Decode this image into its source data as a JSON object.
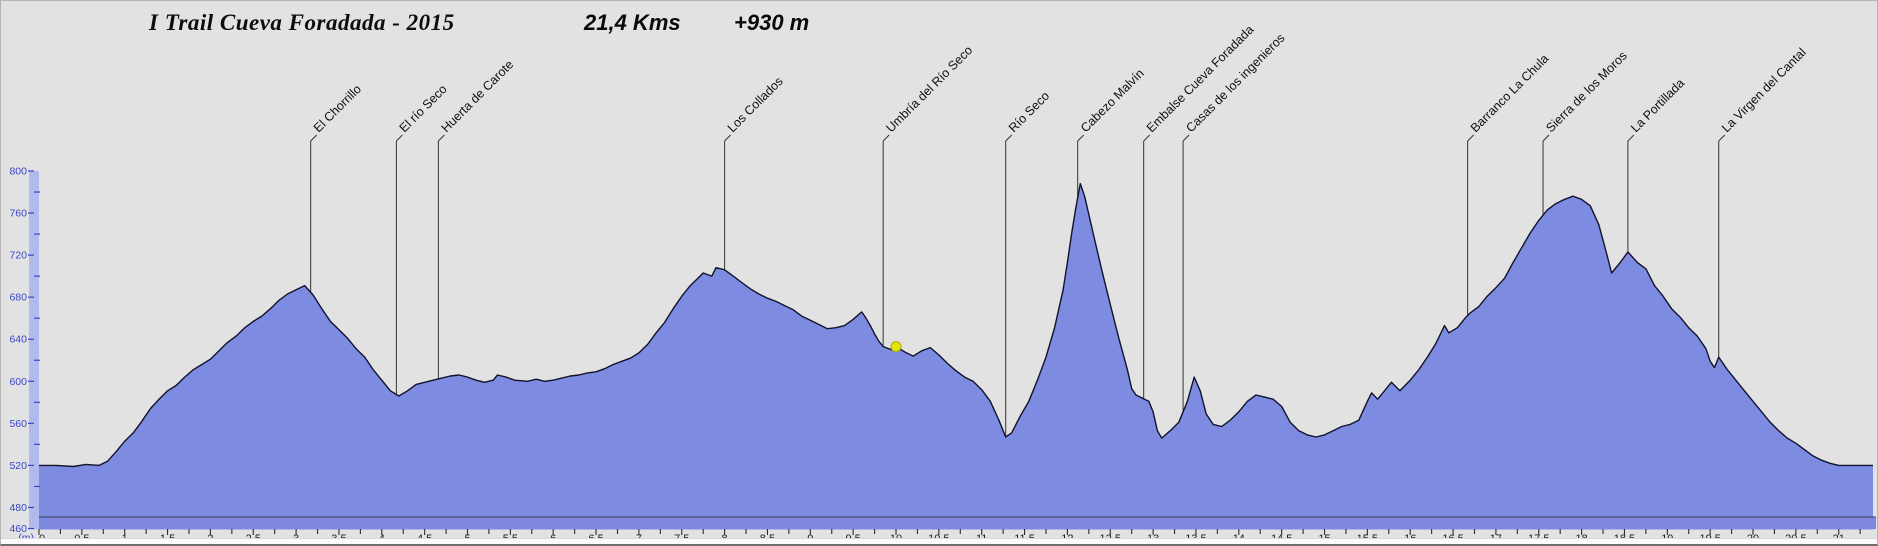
{
  "header": {
    "title": "I Trail Cueva Foradada - 2015",
    "distance": "21,4 Kms",
    "gain": "+930 m"
  },
  "chart_data": {
    "type": "area",
    "title": "I Trail Cueva Foradada - 2015",
    "distance_label": "21,4 Kms",
    "elevation_gain_label": "+930 m",
    "xlabel": "km",
    "ylabel": "(m)",
    "y_unit_label": "(m)",
    "xlim": [
      0,
      21.4
    ],
    "ylim": [
      460,
      800
    ],
    "x_label_step": 0.5,
    "x_minor_step": 0.25,
    "x_last_label": 21,
    "y_major_labels": [
      800,
      760,
      720,
      680,
      640,
      600,
      560,
      520,
      480,
      460
    ],
    "y_minor_ticks": [
      780,
      740,
      700,
      660,
      620,
      580,
      540,
      500
    ],
    "grid": "off",
    "legend": "none",
    "colors": {
      "background": "#e2e2e2",
      "fill": "#7d8ce1",
      "line": "#12122b",
      "y_band": "#b1baec",
      "x_band": "#7d88de",
      "axis_text_blue": "#3946c8",
      "tick_dark": "#2b2b2b",
      "callout_line": "#333333",
      "marker_yellow": "#e3e40b",
      "marker_edge": "#a9aa00"
    },
    "marker": {
      "km": 10.0,
      "elev": 633
    },
    "waypoints": [
      {
        "label": "El Chorrillo",
        "km": 3.17
      },
      {
        "label": "El río Seco",
        "km": 4.17
      },
      {
        "label": "Huerta de Carote",
        "km": 4.66
      },
      {
        "label": "Los Collados",
        "km": 8.0
      },
      {
        "label": "Umbría del Río Seco",
        "km": 9.85
      },
      {
        "label": "Río Seco",
        "km": 11.28
      },
      {
        "label": "Cabezo Malvín",
        "km": 12.12
      },
      {
        "label": "Embalse Cueva Foradada",
        "km": 12.89
      },
      {
        "label": "Casas de los ingenieros",
        "km": 13.35
      },
      {
        "label": "Barranco La Chula",
        "km": 16.67
      },
      {
        "label": "Sierra de los Moros",
        "km": 17.55
      },
      {
        "label": "La Portillada",
        "km": 18.54
      },
      {
        "label": "La Virgen del Cantal",
        "km": 19.6
      }
    ],
    "series": [
      {
        "name": "elevation-profile",
        "points": [
          [
            0,
            520
          ],
          [
            0.2,
            520
          ],
          [
            0.4,
            519
          ],
          [
            0.55,
            521
          ],
          [
            0.7,
            520
          ],
          [
            0.8,
            524
          ],
          [
            0.9,
            533
          ],
          [
            1.0,
            543
          ],
          [
            1.1,
            551
          ],
          [
            1.2,
            562
          ],
          [
            1.3,
            574
          ],
          [
            1.4,
            583
          ],
          [
            1.5,
            591
          ],
          [
            1.6,
            596
          ],
          [
            1.7,
            604
          ],
          [
            1.8,
            611
          ],
          [
            1.9,
            616
          ],
          [
            2.0,
            621
          ],
          [
            2.1,
            629
          ],
          [
            2.2,
            637
          ],
          [
            2.3,
            643
          ],
          [
            2.4,
            651
          ],
          [
            2.5,
            657
          ],
          [
            2.6,
            662
          ],
          [
            2.7,
            669
          ],
          [
            2.8,
            677
          ],
          [
            2.9,
            683
          ],
          [
            3.0,
            687
          ],
          [
            3.1,
            691
          ],
          [
            3.2,
            682
          ],
          [
            3.3,
            669
          ],
          [
            3.4,
            657
          ],
          [
            3.5,
            649
          ],
          [
            3.6,
            641
          ],
          [
            3.7,
            631
          ],
          [
            3.8,
            623
          ],
          [
            3.9,
            611
          ],
          [
            4.0,
            601
          ],
          [
            4.1,
            591
          ],
          [
            4.2,
            586
          ],
          [
            4.3,
            591
          ],
          [
            4.4,
            597
          ],
          [
            4.5,
            599
          ],
          [
            4.6,
            601
          ],
          [
            4.7,
            603
          ],
          [
            4.8,
            605
          ],
          [
            4.9,
            606
          ],
          [
            5.0,
            604
          ],
          [
            5.1,
            601
          ],
          [
            5.2,
            599
          ],
          [
            5.3,
            601
          ],
          [
            5.35,
            606
          ],
          [
            5.45,
            604
          ],
          [
            5.55,
            601
          ],
          [
            5.7,
            600
          ],
          [
            5.8,
            602
          ],
          [
            5.9,
            600
          ],
          [
            6.0,
            601
          ],
          [
            6.1,
            603
          ],
          [
            6.2,
            605
          ],
          [
            6.3,
            606
          ],
          [
            6.4,
            608
          ],
          [
            6.5,
            609
          ],
          [
            6.6,
            612
          ],
          [
            6.7,
            616
          ],
          [
            6.8,
            619
          ],
          [
            6.9,
            622
          ],
          [
            7.0,
            627
          ],
          [
            7.1,
            635
          ],
          [
            7.2,
            646
          ],
          [
            7.3,
            656
          ],
          [
            7.4,
            669
          ],
          [
            7.5,
            681
          ],
          [
            7.6,
            691
          ],
          [
            7.7,
            699
          ],
          [
            7.75,
            703
          ],
          [
            7.85,
            700
          ],
          [
            7.9,
            708
          ],
          [
            8.0,
            706
          ],
          [
            8.1,
            700
          ],
          [
            8.2,
            694
          ],
          [
            8.3,
            688
          ],
          [
            8.4,
            683
          ],
          [
            8.5,
            679
          ],
          [
            8.6,
            676
          ],
          [
            8.7,
            672
          ],
          [
            8.8,
            668
          ],
          [
            8.9,
            662
          ],
          [
            9.0,
            658
          ],
          [
            9.1,
            654
          ],
          [
            9.2,
            650
          ],
          [
            9.3,
            651
          ],
          [
            9.4,
            653
          ],
          [
            9.5,
            659
          ],
          [
            9.6,
            666
          ],
          [
            9.65,
            660
          ],
          [
            9.7,
            653
          ],
          [
            9.75,
            645
          ],
          [
            9.8,
            638
          ],
          [
            9.85,
            633
          ],
          [
            9.95,
            630
          ],
          [
            10.0,
            633
          ],
          [
            10.1,
            628
          ],
          [
            10.2,
            624
          ],
          [
            10.3,
            629
          ],
          [
            10.4,
            632
          ],
          [
            10.5,
            625
          ],
          [
            10.6,
            617
          ],
          [
            10.7,
            610
          ],
          [
            10.8,
            604
          ],
          [
            10.9,
            600
          ],
          [
            11.0,
            592
          ],
          [
            11.1,
            581
          ],
          [
            11.2,
            563
          ],
          [
            11.28,
            547
          ],
          [
            11.35,
            551
          ],
          [
            11.45,
            567
          ],
          [
            11.55,
            581
          ],
          [
            11.65,
            601
          ],
          [
            11.75,
            623
          ],
          [
            11.85,
            651
          ],
          [
            11.95,
            687
          ],
          [
            12.0,
            713
          ],
          [
            12.05,
            741
          ],
          [
            12.1,
            766
          ],
          [
            12.15,
            788
          ],
          [
            12.2,
            776
          ],
          [
            12.3,
            741
          ],
          [
            12.4,
            706
          ],
          [
            12.5,
            673
          ],
          [
            12.6,
            641
          ],
          [
            12.7,
            611
          ],
          [
            12.75,
            593
          ],
          [
            12.8,
            587
          ],
          [
            12.9,
            583
          ],
          [
            12.95,
            581
          ],
          [
            13.0,
            571
          ],
          [
            13.05,
            553
          ],
          [
            13.1,
            546
          ],
          [
            13.2,
            553
          ],
          [
            13.3,
            561
          ],
          [
            13.4,
            581
          ],
          [
            13.48,
            604
          ],
          [
            13.55,
            591
          ],
          [
            13.62,
            569
          ],
          [
            13.7,
            559
          ],
          [
            13.8,
            557
          ],
          [
            13.9,
            563
          ],
          [
            14.0,
            571
          ],
          [
            14.1,
            581
          ],
          [
            14.2,
            587
          ],
          [
            14.3,
            585
          ],
          [
            14.4,
            583
          ],
          [
            14.5,
            576
          ],
          [
            14.6,
            561
          ],
          [
            14.7,
            553
          ],
          [
            14.8,
            549
          ],
          [
            14.9,
            547
          ],
          [
            15.0,
            549
          ],
          [
            15.1,
            553
          ],
          [
            15.2,
            557
          ],
          [
            15.3,
            559
          ],
          [
            15.4,
            563
          ],
          [
            15.5,
            581
          ],
          [
            15.55,
            589
          ],
          [
            15.62,
            583
          ],
          [
            15.7,
            591
          ],
          [
            15.78,
            599
          ],
          [
            15.88,
            591
          ],
          [
            16.0,
            601
          ],
          [
            16.1,
            611
          ],
          [
            16.2,
            623
          ],
          [
            16.3,
            636
          ],
          [
            16.4,
            653
          ],
          [
            16.45,
            646
          ],
          [
            16.55,
            651
          ],
          [
            16.65,
            661
          ],
          [
            16.7,
            665
          ],
          [
            16.8,
            671
          ],
          [
            16.9,
            681
          ],
          [
            17.0,
            689
          ],
          [
            17.1,
            698
          ],
          [
            17.2,
            713
          ],
          [
            17.3,
            727
          ],
          [
            17.4,
            741
          ],
          [
            17.5,
            753
          ],
          [
            17.6,
            763
          ],
          [
            17.7,
            769
          ],
          [
            17.8,
            773
          ],
          [
            17.9,
            776
          ],
          [
            18.0,
            773
          ],
          [
            18.1,
            767
          ],
          [
            18.2,
            749
          ],
          [
            18.3,
            719
          ],
          [
            18.35,
            703
          ],
          [
            18.45,
            713
          ],
          [
            18.54,
            723
          ],
          [
            18.65,
            713
          ],
          [
            18.75,
            707
          ],
          [
            18.85,
            691
          ],
          [
            18.95,
            681
          ],
          [
            19.05,
            669
          ],
          [
            19.15,
            661
          ],
          [
            19.25,
            651
          ],
          [
            19.35,
            643
          ],
          [
            19.45,
            631
          ],
          [
            19.5,
            619
          ],
          [
            19.55,
            613
          ],
          [
            19.6,
            623
          ],
          [
            19.7,
            611
          ],
          [
            19.8,
            601
          ],
          [
            19.9,
            591
          ],
          [
            20.0,
            581
          ],
          [
            20.1,
            571
          ],
          [
            20.2,
            561
          ],
          [
            20.3,
            553
          ],
          [
            20.4,
            546
          ],
          [
            20.5,
            541
          ],
          [
            20.6,
            535
          ],
          [
            20.7,
            529
          ],
          [
            20.8,
            525
          ],
          [
            20.9,
            522
          ],
          [
            21.0,
            520
          ],
          [
            21.2,
            520
          ],
          [
            21.4,
            520
          ]
        ]
      }
    ]
  }
}
